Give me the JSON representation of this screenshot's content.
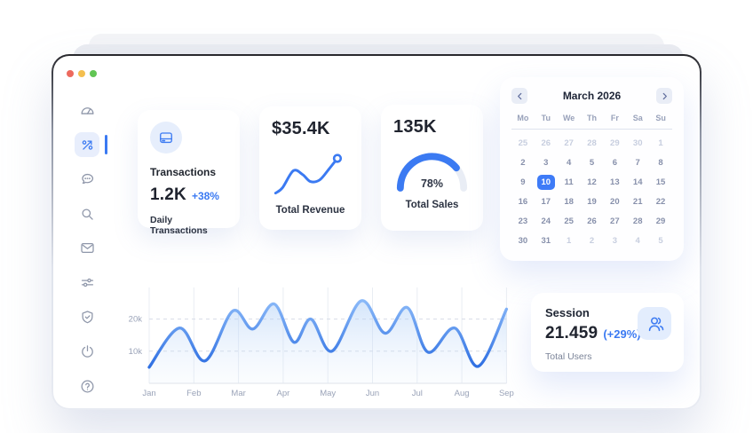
{
  "window": {
    "controls": {
      "colors": [
        "#ed6a5e",
        "#f4bf4f",
        "#61c554"
      ]
    },
    "accent": "#3b7af2"
  },
  "sidebar": {
    "items": [
      {
        "name": "dashboard",
        "icon": "speedometer-icon",
        "active": false
      },
      {
        "name": "analytics",
        "icon": "percent-arrow-icon",
        "active": true
      },
      {
        "name": "messages",
        "icon": "chat-bubble-icon",
        "active": false
      },
      {
        "name": "search",
        "icon": "search-icon",
        "active": false
      },
      {
        "name": "mail",
        "icon": "mail-icon",
        "active": false
      },
      {
        "name": "settings",
        "icon": "sliders-icon",
        "active": false
      },
      {
        "name": "security",
        "icon": "shield-check-icon",
        "active": false
      },
      {
        "name": "power",
        "icon": "power-icon",
        "active": false
      },
      {
        "name": "help",
        "icon": "help-circle-icon",
        "active": false
      }
    ]
  },
  "cards": {
    "transactions": {
      "icon": "credit-card-icon",
      "title": "Transactions",
      "value": "1.2K",
      "delta": "+38%",
      "subtitle": "Daily Transactions"
    },
    "revenue": {
      "value": "$35.4K",
      "label": "Total Revenue",
      "sparkline_points": [
        [
          5,
          57
        ],
        [
          14,
          50
        ],
        [
          28,
          28
        ],
        [
          40,
          33
        ],
        [
          50,
          42
        ],
        [
          62,
          40
        ],
        [
          74,
          26
        ],
        [
          85,
          12
        ]
      ]
    },
    "sales": {
      "value": "135K",
      "percent": 78,
      "percent_label": "78%",
      "label": "Total Sales",
      "track_color": "#e9edf5",
      "fill_color": "#3b7af2"
    }
  },
  "calendar": {
    "title": "March 2026",
    "prev_icon": "chevron-left-icon",
    "next_icon": "chevron-right-icon",
    "selected_color": "#3e7bf7",
    "day_headers": [
      "Mo",
      "Tu",
      "We",
      "Th",
      "Fr",
      "Sa",
      "Su"
    ],
    "weeks": [
      [
        {
          "label": "25",
          "state": "muted"
        },
        {
          "label": "26",
          "state": "muted"
        },
        {
          "label": "27",
          "state": "muted"
        },
        {
          "label": "28",
          "state": "muted"
        },
        {
          "label": "29",
          "state": "muted"
        },
        {
          "label": "30",
          "state": "muted"
        },
        {
          "label": "1",
          "state": "muted"
        }
      ],
      [
        {
          "label": "2",
          "state": "normal"
        },
        {
          "label": "3",
          "state": "normal"
        },
        {
          "label": "4",
          "state": "normal"
        },
        {
          "label": "5",
          "state": "normal"
        },
        {
          "label": "6",
          "state": "normal"
        },
        {
          "label": "7",
          "state": "normal"
        },
        {
          "label": "8",
          "state": "normal"
        }
      ],
      [
        {
          "label": "9",
          "state": "normal"
        },
        {
          "label": "10",
          "state": "selected"
        },
        {
          "label": "11",
          "state": "normal"
        },
        {
          "label": "12",
          "state": "normal"
        },
        {
          "label": "13",
          "state": "normal"
        },
        {
          "label": "14",
          "state": "normal"
        },
        {
          "label": "15",
          "state": "normal"
        }
      ],
      [
        {
          "label": "16",
          "state": "normal"
        },
        {
          "label": "17",
          "state": "normal"
        },
        {
          "label": "18",
          "state": "normal"
        },
        {
          "label": "19",
          "state": "normal"
        },
        {
          "label": "20",
          "state": "normal"
        },
        {
          "label": "21",
          "state": "normal"
        },
        {
          "label": "22",
          "state": "normal"
        }
      ],
      [
        {
          "label": "23",
          "state": "normal"
        },
        {
          "label": "24",
          "state": "normal"
        },
        {
          "label": "25",
          "state": "normal"
        },
        {
          "label": "26",
          "state": "normal"
        },
        {
          "label": "27",
          "state": "normal"
        },
        {
          "label": "28",
          "state": "normal"
        },
        {
          "label": "29",
          "state": "normal"
        }
      ],
      [
        {
          "label": "30",
          "state": "normal"
        },
        {
          "label": "31",
          "state": "normal"
        },
        {
          "label": "1",
          "state": "muted"
        },
        {
          "label": "2",
          "state": "muted"
        },
        {
          "label": "3",
          "state": "muted"
        },
        {
          "label": "4",
          "state": "muted"
        },
        {
          "label": "5",
          "state": "muted"
        }
      ]
    ]
  },
  "chart_data": {
    "type": "area",
    "title": "",
    "xlabel": "",
    "ylabel": "",
    "x_ticks": [
      "Jan",
      "Feb",
      "Mar",
      "Apr",
      "May",
      "Jun",
      "Jul",
      "Aug",
      "Sep"
    ],
    "y_ticks": [
      {
        "label": "10k",
        "value": 10000
      },
      {
        "label": "20k",
        "value": 20000
      }
    ],
    "ylim": [
      0,
      30000
    ],
    "grid": true,
    "legend": false,
    "line_color_top": "#8ab9f8",
    "line_color_bottom": "#2e6fe2",
    "fill_color": "#a9cbf6",
    "points": [
      [
        0,
        5000
      ],
      [
        0.68,
        17200
      ],
      [
        1.25,
        7000
      ],
      [
        1.87,
        22500
      ],
      [
        2.32,
        16900
      ],
      [
        2.8,
        24700
      ],
      [
        3.24,
        12800
      ],
      [
        3.62,
        20000
      ],
      [
        4.09,
        10000
      ],
      [
        4.75,
        25700
      ],
      [
        5.28,
        15600
      ],
      [
        5.78,
        23600
      ],
      [
        6.24,
        9700
      ],
      [
        6.84,
        17200
      ],
      [
        7.37,
        5300
      ],
      [
        8,
        23100
      ]
    ]
  },
  "session": {
    "title": "Session",
    "value": "21.459",
    "delta": "(+29%)",
    "subtitle": "Total Users",
    "icon": "users-icon"
  }
}
